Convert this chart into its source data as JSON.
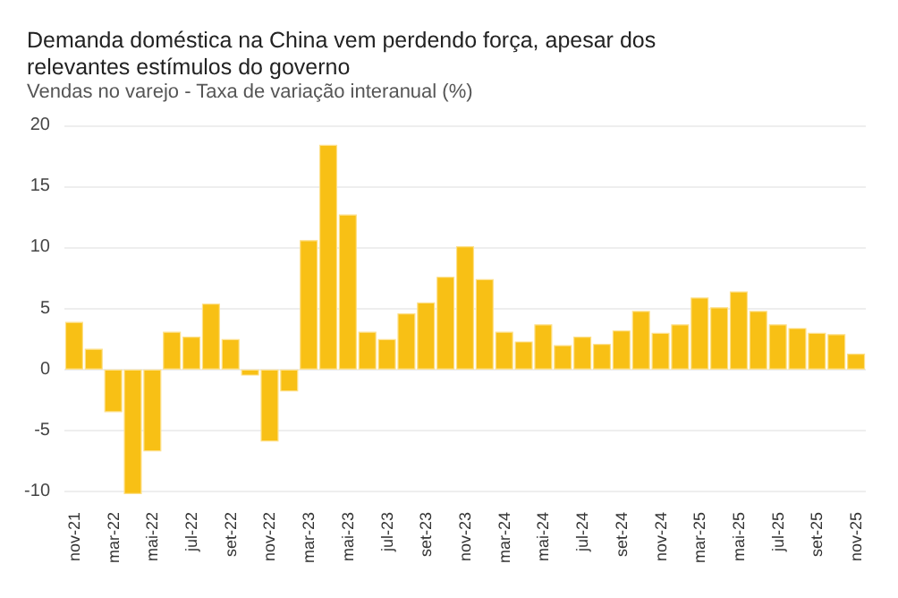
{
  "chart_data": {
    "type": "bar",
    "title": "Demanda doméstica na China vem perdendo força, apesar dos\nrelevantes estímulos do governo",
    "subtitle": "Vendas no varejo - Taxa de variação interanual (%)",
    "categories": [
      "nov-21",
      null,
      "mar-22",
      null,
      "mai-22",
      null,
      "jul-22",
      null,
      "set-22",
      null,
      "nov-22",
      null,
      "mar-23",
      null,
      "mai-23",
      null,
      "jul-23",
      null,
      "set-23",
      null,
      "nov-23",
      null,
      "mar-24",
      null,
      "mai-24",
      null,
      "jul-24",
      null,
      "set-24",
      null,
      "nov-24",
      null,
      "mar-25",
      null,
      "mai-25",
      null,
      "jul-25",
      null,
      "set-25",
      null,
      "nov-25"
    ],
    "values": [
      3.9,
      1.7,
      -3.5,
      -10.2,
      -6.7,
      3.1,
      2.7,
      5.4,
      2.5,
      -0.5,
      -5.9,
      -1.8,
      10.6,
      18.4,
      12.7,
      3.1,
      2.5,
      4.6,
      5.5,
      7.6,
      10.1,
      7.4,
      3.1,
      2.3,
      3.7,
      2.0,
      2.7,
      2.1,
      3.2,
      4.8,
      3.0,
      3.7,
      5.9,
      5.1,
      6.4,
      4.8,
      3.7,
      3.4,
      3.0,
      2.9,
      1.3
    ],
    "color": "#f8c015",
    "ylim": [
      -10.5,
      20
    ],
    "yticks": [
      -10,
      -5,
      0,
      5,
      10,
      15,
      20
    ],
    "grid": "y"
  }
}
